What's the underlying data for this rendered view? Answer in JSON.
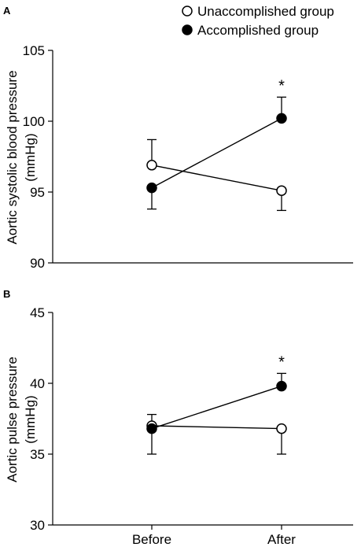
{
  "legend": {
    "items": [
      {
        "label": "Unaccomplished group",
        "marker": "open-circle"
      },
      {
        "label": "Accomplished group",
        "marker": "filled-circle"
      }
    ]
  },
  "chart_data": [
    {
      "panel": "A",
      "type": "line",
      "categories": [
        "Before",
        "After"
      ],
      "ylabel": "Aortic systolic blood pressure",
      "ylabel_unit": "(mmHg)",
      "ylim": [
        90,
        105
      ],
      "yticks": [
        90,
        95,
        100,
        105
      ],
      "grid": false,
      "series": [
        {
          "name": "Unaccomplished group",
          "marker": "open",
          "values": [
            96.9,
            95.1
          ],
          "err_up": [
            1.8,
            0
          ],
          "err_down": [
            0,
            1.4
          ]
        },
        {
          "name": "Accomplished group",
          "marker": "filled",
          "values": [
            95.3,
            100.2
          ],
          "err_up": [
            0,
            1.5
          ],
          "err_down": [
            1.5,
            0
          ]
        }
      ],
      "annotations": [
        {
          "text": "*",
          "category": "After"
        }
      ]
    },
    {
      "panel": "B",
      "type": "line",
      "categories": [
        "Before",
        "After"
      ],
      "ylabel": "Aortic pulse pressure",
      "ylabel_unit": "(mmHg)",
      "ylim": [
        30,
        45
      ],
      "yticks": [
        30,
        35,
        40,
        45
      ],
      "grid": false,
      "series": [
        {
          "name": "Unaccomplished group",
          "marker": "open",
          "values": [
            37.0,
            36.8
          ],
          "err_up": [
            0.8,
            0
          ],
          "err_down": [
            0,
            1.8
          ]
        },
        {
          "name": "Accomplished group",
          "marker": "filled",
          "values": [
            36.8,
            39.8
          ],
          "err_up": [
            0,
            0.9
          ],
          "err_down": [
            1.8,
            0
          ]
        }
      ],
      "annotations": [
        {
          "text": "*",
          "category": "After"
        }
      ]
    }
  ]
}
